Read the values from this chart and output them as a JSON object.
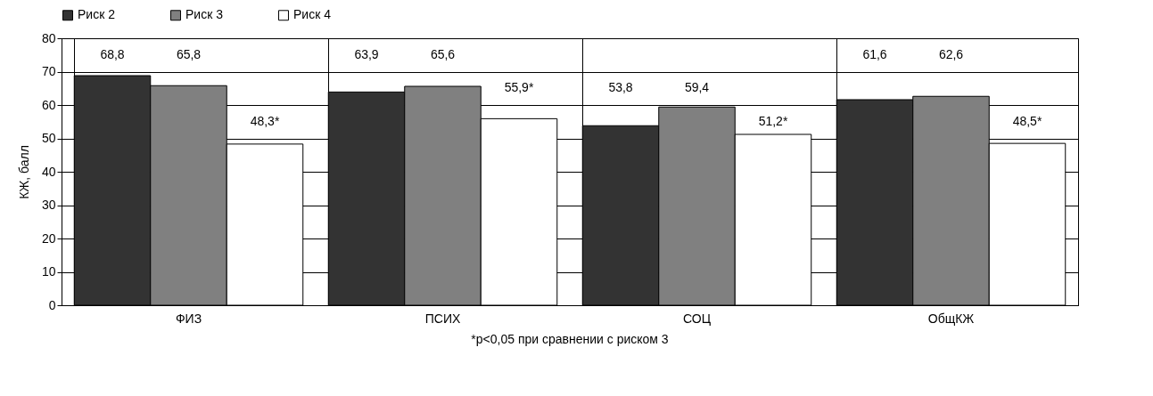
{
  "chart_data": {
    "type": "bar",
    "categories": [
      "ФИЗ",
      "ПСИХ",
      "СОЦ",
      "ОбщКЖ"
    ],
    "series": [
      {
        "name": "Риск 2",
        "color": "#333333",
        "values": [
          68.8,
          63.9,
          53.8,
          61.6
        ],
        "value_labels": [
          "68,8",
          "63,9",
          "53,8",
          "61,6"
        ]
      },
      {
        "name": "Риск 3",
        "color": "#808080",
        "values": [
          65.8,
          65.6,
          59.4,
          62.6
        ],
        "value_labels": [
          "65,8",
          "65,6",
          "59,4",
          "62,6"
        ]
      },
      {
        "name": "Риск 4",
        "color": "#ffffff",
        "values": [
          48.3,
          55.9,
          51.2,
          48.5
        ],
        "value_labels": [
          "48,3*",
          "55,9*",
          "51,2*",
          "48,5*"
        ]
      }
    ],
    "ylabel": "КЖ, балл",
    "ylim": [
      0,
      80
    ],
    "yticks": [
      0,
      10,
      20,
      30,
      40,
      50,
      60,
      70,
      80
    ],
    "grid": true,
    "legend": "top",
    "annotations": [
      "*p<0,05 при сравнении с риском 3"
    ]
  }
}
